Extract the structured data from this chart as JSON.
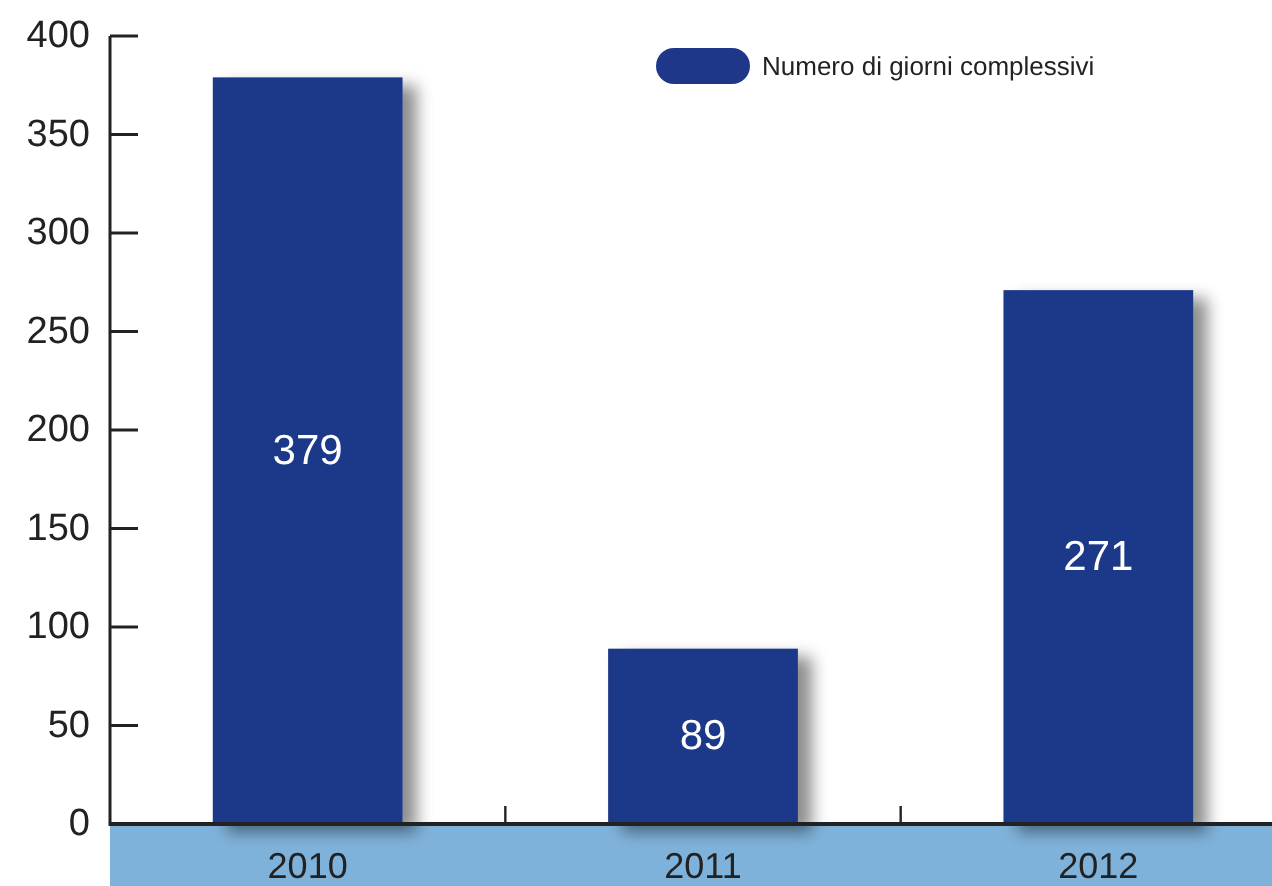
{
  "chart_data": {
    "type": "bar",
    "categories": [
      "2010",
      "2011",
      "2012"
    ],
    "series": [
      {
        "name": "Numero di giorni complessivi",
        "color": "#1f3789",
        "values": [
          379,
          89,
          271
        ]
      }
    ],
    "ylim": [
      0,
      400
    ],
    "yticks": [
      0,
      50,
      100,
      150,
      200,
      250,
      300,
      350,
      400
    ],
    "data_labels": true,
    "legend": "top right"
  }
}
